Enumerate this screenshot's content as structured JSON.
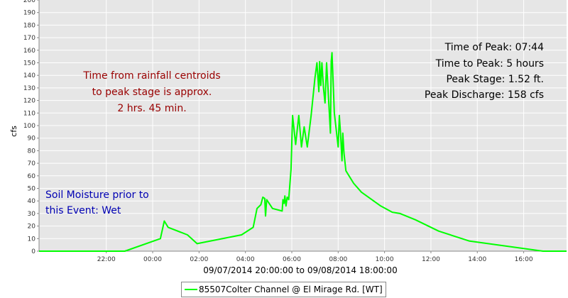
{
  "chart_data": {
    "type": "line",
    "ylabel": "cfs",
    "xlabel": "09/07/2014 20:00:00 to 09/08/2014 18:00:00",
    "ylim": [
      0,
      200
    ],
    "yticks": [
      0,
      10,
      20,
      30,
      40,
      50,
      60,
      70,
      80,
      90,
      100,
      110,
      120,
      130,
      140,
      150,
      160,
      170,
      180,
      190,
      200
    ],
    "xlim_hours": [
      -0.9,
      21.85
    ],
    "xticks": [
      {
        "h": 2,
        "label": "22:00"
      },
      {
        "h": 4,
        "label": "00:00"
      },
      {
        "h": 6,
        "label": "02:00"
      },
      {
        "h": 8,
        "label": "04:00"
      },
      {
        "h": 10,
        "label": "06:00"
      },
      {
        "h": 12,
        "label": "08:00"
      },
      {
        "h": 14,
        "label": "10:00"
      },
      {
        "h": 16,
        "label": "12:00"
      },
      {
        "h": 18,
        "label": "14:00"
      },
      {
        "h": 20,
        "label": "16:00"
      }
    ],
    "grid": true,
    "legend": "bottom-center",
    "series": [
      {
        "name": "85507Colter Channel @ El Mirage Rd. [WT]",
        "color": "#00ff00",
        "x": [
          "2014-09-07 19:06",
          "2014-09-07 22:48",
          "2014-09-08 00:20",
          "2014-09-08 00:30",
          "2014-09-08 00:40",
          "2014-09-08 01:30",
          "2014-09-08 01:55",
          "2014-09-08 03:50",
          "2014-09-08 04:20",
          "2014-09-08 04:30",
          "2014-09-08 04:40",
          "2014-09-08 04:45",
          "2014-09-08 04:50",
          "2014-09-08 04:52",
          "2014-09-08 04:55",
          "2014-09-08 05:10",
          "2014-09-08 05:35",
          "2014-09-08 05:37",
          "2014-09-08 05:40",
          "2014-09-08 05:42",
          "2014-09-08 05:45",
          "2014-09-08 05:48",
          "2014-09-08 05:52",
          "2014-09-08 05:58",
          "2014-09-08 06:02",
          "2014-09-08 06:10",
          "2014-09-08 06:18",
          "2014-09-08 06:25",
          "2014-09-08 06:32",
          "2014-09-08 06:40",
          "2014-09-08 06:50",
          "2014-09-08 07:00",
          "2014-09-08 07:05",
          "2014-09-08 07:10",
          "2014-09-08 07:12",
          "2014-09-08 07:15",
          "2014-09-08 07:18",
          "2014-09-08 07:22",
          "2014-09-08 07:26",
          "2014-09-08 07:30",
          "2014-09-08 07:40",
          "2014-09-08 07:42",
          "2014-09-08 07:44",
          "2014-09-08 07:50",
          "2014-09-08 08:00",
          "2014-09-08 08:03",
          "2014-09-08 08:06",
          "2014-09-08 08:10",
          "2014-09-08 08:12",
          "2014-09-08 08:15",
          "2014-09-08 08:20",
          "2014-09-08 08:40",
          "2014-09-08 09:00",
          "2014-09-08 09:50",
          "2014-09-08 10:20",
          "2014-09-08 10:40",
          "2014-09-08 11:20",
          "2014-09-08 12:20",
          "2014-09-08 13:40",
          "2014-09-08 16:50",
          "2014-09-08 18:00"
        ],
        "values": [
          0,
          0,
          10,
          24,
          19,
          13,
          6,
          13,
          19,
          34,
          37,
          43,
          42,
          28,
          41,
          34,
          32,
          41,
          38,
          44,
          36,
          43,
          41,
          65,
          108,
          85,
          108,
          83,
          99,
          83,
          108,
          138,
          150,
          127,
          151,
          132,
          150,
          130,
          118,
          150,
          94,
          151,
          158,
          110,
          83,
          108,
          94,
          72,
          94,
          78,
          64,
          54,
          47,
          36,
          31,
          30,
          25,
          16,
          8,
          0,
          0
        ]
      }
    ]
  },
  "annotations": {
    "peak_time": "Time of Peak: 07:44",
    "time_to_peak": "Time to Peak: 5 hours",
    "peak_stage": "Peak Stage: 1.52 ft.",
    "peak_discharge": "Peak Discharge: 158 cfs",
    "rain_line1": "Time from rainfall centroids",
    "rain_line2": "to peak stage is approx.",
    "rain_line3": "2 hrs. 45 min.",
    "soil_line1": "Soil Moisture prior to",
    "soil_line2": "this Event: Wet"
  },
  "colors": {
    "plot_background": "#e6e6e6",
    "series": "#00ff00",
    "peak_text": "#000000",
    "rainfall_text": "#990000",
    "soil_text": "#0000b3"
  }
}
